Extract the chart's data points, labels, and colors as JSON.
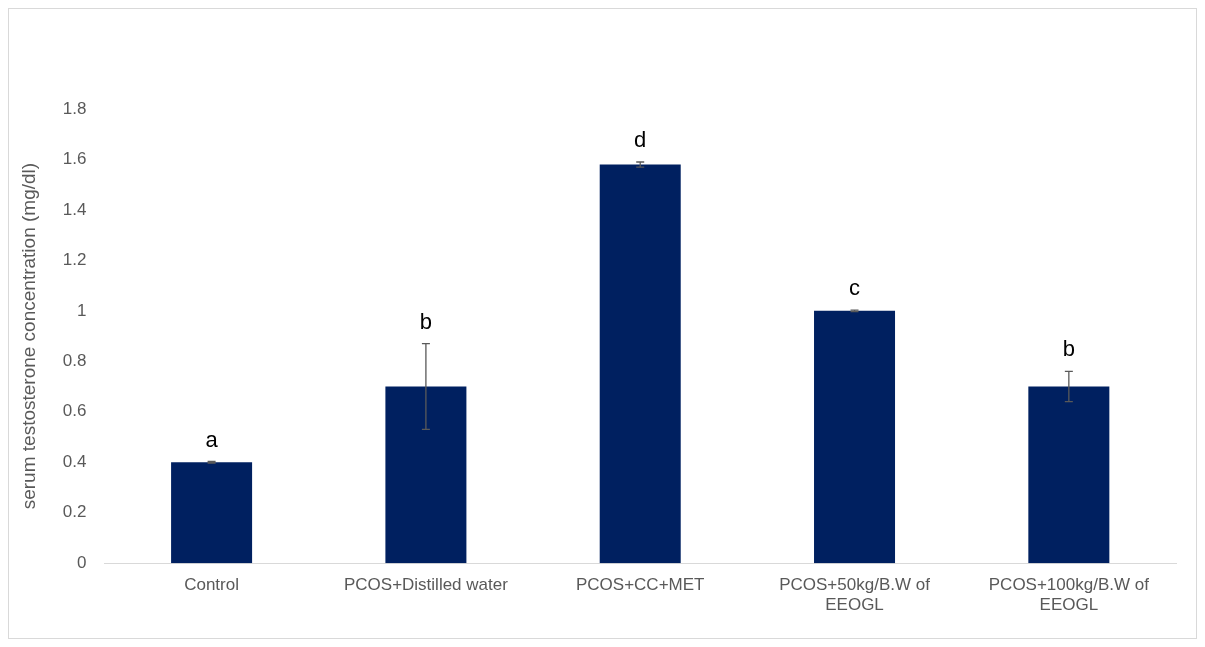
{
  "chart_data": {
    "type": "bar",
    "ylabel": "serum testosterone concentration (mg/dl)",
    "categories": [
      "Control",
      "PCOS+Distilled water",
      "PCOS+CC+MET",
      "PCOS+50kg/B.W of EEOGL",
      "PCOS+100kg/B.W of EEOGL"
    ],
    "values": [
      0.4,
      0.7,
      1.58,
      1.0,
      0.7
    ],
    "errors": [
      0.003,
      0.17,
      0.01,
      0.003,
      0.06
    ],
    "color": "#002060",
    "ylim": [
      0,
      1.8
    ],
    "yticks": [
      0,
      0.2,
      0.4,
      0.6,
      0.8,
      1,
      1.2,
      1.4,
      1.6,
      1.8
    ],
    "grid": false,
    "legend": false,
    "annotations": [
      "a",
      "b",
      "d",
      "c",
      "b"
    ]
  }
}
